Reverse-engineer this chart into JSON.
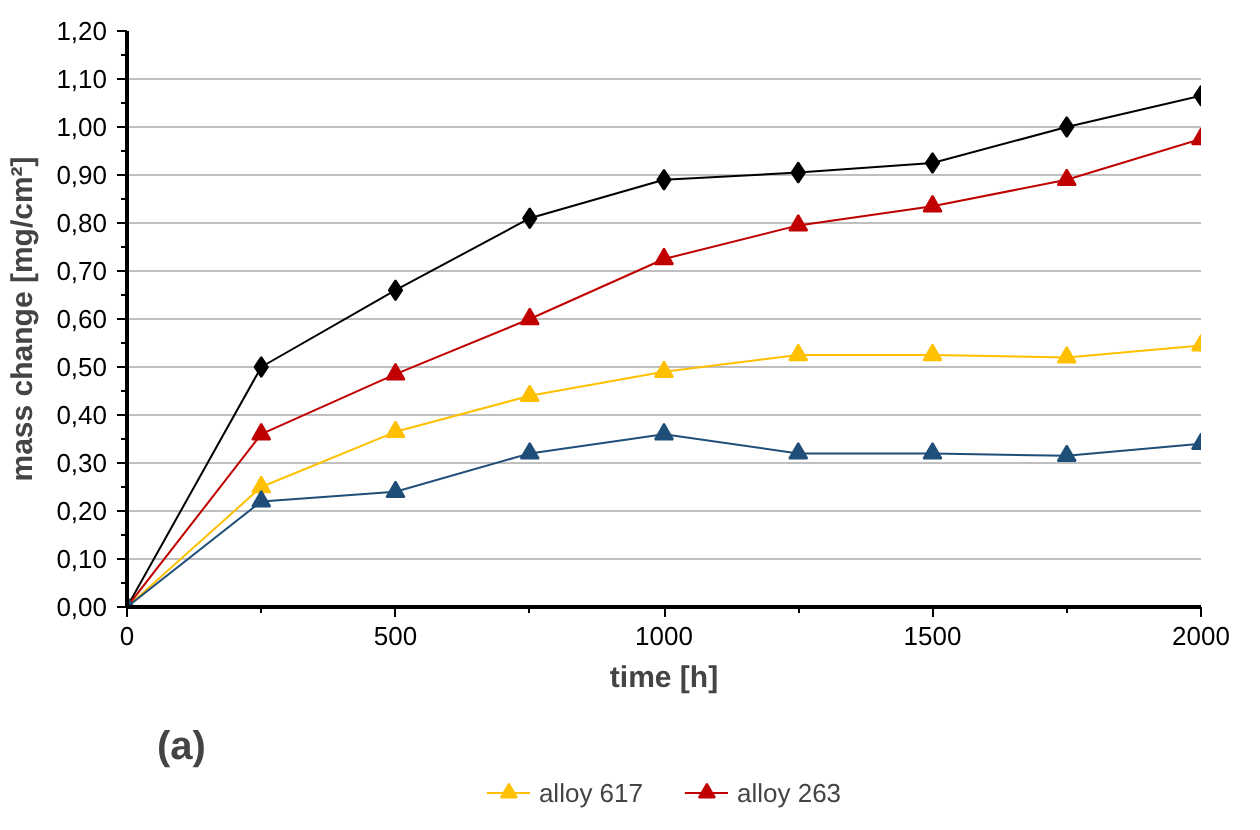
{
  "chart_data": {
    "type": "line",
    "xlabel": "time [h]",
    "ylabel": "mass change [mg/cm²]",
    "annotations": [
      "(a)"
    ],
    "x": [
      0,
      250,
      500,
      750,
      1000,
      1250,
      1500,
      1750,
      2000
    ],
    "xlim": [
      0,
      2000
    ],
    "xticks": [
      0,
      500,
      1000,
      1500,
      2000
    ],
    "ylim": [
      0,
      1.2
    ],
    "yticks": [
      {
        "value": 0,
        "label": "0,00"
      },
      {
        "value": 0.1,
        "label": "0,10"
      },
      {
        "value": 0.2,
        "label": "0,20"
      },
      {
        "value": 0.3,
        "label": "0,30"
      },
      {
        "value": 0.4,
        "label": "0,40"
      },
      {
        "value": 0.5,
        "label": "0,50"
      },
      {
        "value": 0.6,
        "label": "0,60"
      },
      {
        "value": 0.7,
        "label": "0,70"
      },
      {
        "value": 0.8,
        "label": "0,80"
      },
      {
        "value": 0.9,
        "label": "0,90"
      },
      {
        "value": 1.0,
        "label": "1,00"
      },
      {
        "value": 1.1,
        "label": "1,10"
      },
      {
        "value": 1.2,
        "label": "1,20"
      }
    ],
    "grid": "y",
    "legend": "bottom",
    "line_style": "solid",
    "series": [
      {
        "color": "#000000",
        "marker": "diamond",
        "values": [
          0,
          0.5,
          0.66,
          0.81,
          0.89,
          0.905,
          0.925,
          1.0,
          1.065
        ]
      },
      {
        "name": "alloy 617",
        "color": "#ffc000",
        "marker": "triangle",
        "values": [
          0,
          0.25,
          0.365,
          0.44,
          0.49,
          0.525,
          0.525,
          0.52,
          0.545
        ]
      },
      {
        "name": "alloy 263",
        "color": "#c00000",
        "marker": "triangle",
        "values": [
          0,
          0.36,
          0.485,
          0.6,
          0.725,
          0.795,
          0.835,
          0.89,
          0.975
        ]
      },
      {
        "color": "#1f4e79",
        "marker": "triangle",
        "values": [
          0,
          0.22,
          0.24,
          0.32,
          0.36,
          0.32,
          0.32,
          0.315,
          0.34
        ]
      }
    ]
  }
}
